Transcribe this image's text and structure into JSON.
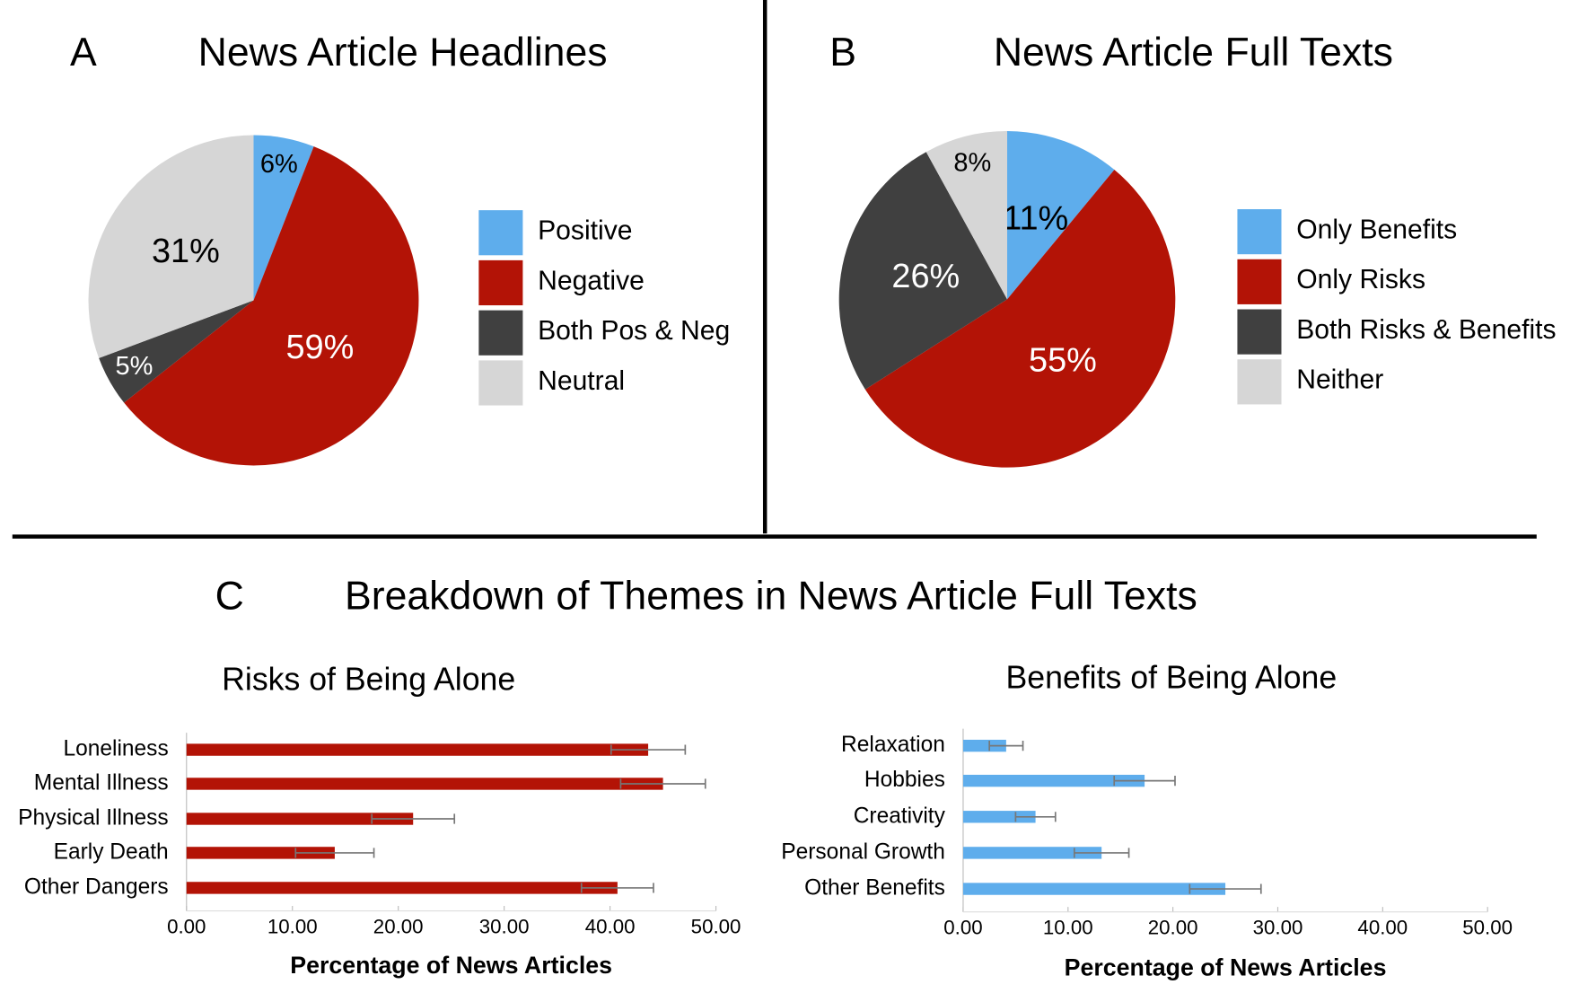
{
  "section_label": "C",
  "section_title": "Breakdown of Themes in News Article Full Texts",
  "chart_data": [
    {
      "type": "pie",
      "panel": "A",
      "title": "News Article Headlines",
      "categories": [
        "Positive",
        "Negative",
        "Both Pos & Neg",
        "Neutral"
      ],
      "values": [
        6,
        59,
        5,
        31
      ],
      "value_labels": [
        "6%",
        "59%",
        "5%",
        "31%"
      ],
      "colors": [
        "#5eadec",
        "#b31306",
        "#404040",
        "#d6d6d6"
      ]
    },
    {
      "type": "pie",
      "panel": "B",
      "title": "News Article Full Texts",
      "categories": [
        "Only Benefits",
        "Only Risks",
        "Both Risks & Benefits",
        "Neither"
      ],
      "values": [
        11,
        55,
        26,
        8
      ],
      "value_labels": [
        "11%",
        "55%",
        "26%",
        "8%"
      ],
      "colors": [
        "#5eadec",
        "#b31306",
        "#404040",
        "#d6d6d6"
      ]
    },
    {
      "type": "bar",
      "title": "Risks of Being Alone",
      "categories": [
        "Loneliness",
        "Mental Illness",
        "Physical Illness",
        "Early Death",
        "Other Dangers"
      ],
      "values": [
        43.6,
        45.0,
        21.4,
        14.0,
        40.7
      ],
      "errors": [
        3.5,
        4.0,
        3.9,
        3.7,
        3.4
      ],
      "color": "#b31306",
      "xlabel": "Percentage of News Articles",
      "xlim": [
        0,
        50
      ],
      "xticks": [
        {
          "value": 0,
          "label": "0.00"
        },
        {
          "value": 10,
          "label": "10.00"
        },
        {
          "value": 20,
          "label": "20.00"
        },
        {
          "value": 30,
          "label": "30.00"
        },
        {
          "value": 40,
          "label": "40.00"
        },
        {
          "value": 50,
          "label": "50.00"
        }
      ]
    },
    {
      "type": "bar",
      "title": "Benefits of Being Alone",
      "categories": [
        "Relaxation",
        "Hobbies",
        "Creativity",
        "Personal Growth",
        "Other Benefits"
      ],
      "values": [
        4.1,
        17.3,
        6.9,
        13.2,
        25.0
      ],
      "errors": [
        1.6,
        2.9,
        1.9,
        2.6,
        3.4
      ],
      "color": "#5eadec",
      "xlabel": "Percentage of News Articles",
      "xlim": [
        0,
        50
      ],
      "xticks": [
        {
          "value": 0,
          "label": "0.00"
        },
        {
          "value": 10,
          "label": "10.00"
        },
        {
          "value": 20,
          "label": "20.00"
        },
        {
          "value": 30,
          "label": "30.00"
        },
        {
          "value": 40,
          "label": "40.00"
        },
        {
          "value": 50,
          "label": "50.00"
        }
      ]
    }
  ]
}
